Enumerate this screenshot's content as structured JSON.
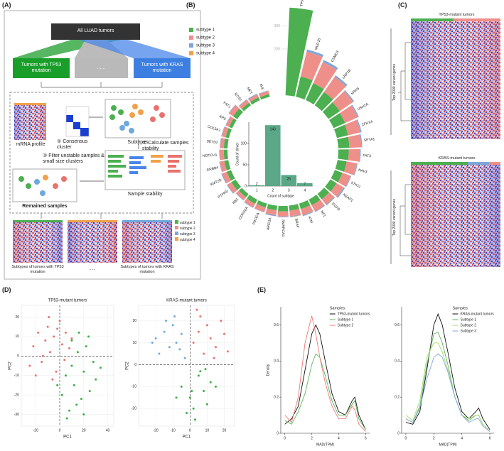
{
  "panel_labels": [
    "(A)",
    "(B)",
    "(C)",
    "(D)",
    "(E)"
  ],
  "panel_a": {
    "top": "All LUAD tumors",
    "groups": [
      "Tumors with TP53 mutation",
      "......",
      "Tumors with KRAS mutation"
    ],
    "mrna": "mRNA profile",
    "step1": "① Consensus cluster",
    "subtypes": "Subtypes",
    "step2": "② Calculate samples stability",
    "step3": "③ Filter unstable samples & small size clusters",
    "remained": "Remained samples",
    "stability": "Sample stability",
    "legend": [
      "subtype 1",
      "subtype 2",
      "subtype 3",
      "subtype 4"
    ],
    "outputs": [
      "Subtypes of tumors with TP53 mutation",
      "......",
      "Subtypes of tumors with KRAS mutation"
    ]
  },
  "panel_c": {
    "top_title": "TP53-mutant tumors",
    "bottom_title": "KRAS-mutant tumors",
    "row_label": "Top 2000 variant genes"
  },
  "chart_data": [
    {
      "type": "circular-bar",
      "categories": [
        "TP53",
        "MUC16",
        "CSMD3",
        "LRP1B",
        "KRAS",
        "USH2A",
        "ZFHX4",
        "SPTA1",
        "FAT3",
        "NAV3",
        "STK11",
        "KEAP1",
        "EGFR",
        "NF1",
        "ATM",
        "BRAF",
        "SMARCA4",
        "ARID1A",
        "PIK3CA",
        "CDKN2A",
        "RB1",
        "PTPRD",
        "KMT2D",
        "ERBB4",
        "NOTCH1",
        "SETD2",
        "COL5A1",
        "APC",
        "FAT1",
        "ROS1",
        "MET",
        "ALK"
      ],
      "series": [
        {
          "name": "subtype 1",
          "color": "#4caf50",
          "values": [
            380,
            90,
            80,
            70,
            60,
            55,
            50,
            48,
            45,
            40,
            35,
            32,
            30,
            28,
            25,
            22,
            24,
            20,
            18,
            20,
            18,
            22,
            20,
            18,
            16,
            16,
            15,
            15,
            22,
            14,
            14,
            12
          ]
        },
        {
          "name": "subtype 2",
          "color": "#ef8f8a",
          "values": [
            0,
            110,
            100,
            80,
            70,
            60,
            55,
            52,
            48,
            45,
            38,
            36,
            28,
            30,
            28,
            24,
            22,
            22,
            20,
            18,
            16,
            20,
            22,
            20,
            18,
            16,
            17,
            15,
            22,
            16,
            14,
            14
          ]
        },
        {
          "name": "subtype 3",
          "color": "#7fa6d8",
          "values": [
            0,
            10,
            10,
            8,
            5,
            5,
            5,
            4,
            4,
            3,
            3,
            6,
            4,
            3,
            4,
            3,
            3,
            4,
            2,
            2,
            2,
            3,
            3,
            2,
            2,
            2,
            2,
            2,
            2,
            2,
            3,
            2
          ]
        },
        {
          "name": "subtype 4",
          "color": "#f0a24b",
          "values": [
            0,
            0,
            0,
            0,
            0,
            0,
            0,
            0,
            0,
            0,
            0,
            0,
            2,
            0,
            0,
            2,
            0,
            0,
            0,
            0,
            0,
            0,
            0,
            0,
            0,
            0,
            0,
            0,
            0,
            0,
            0,
            0
          ]
        }
      ],
      "rlim": [
        0,
        400
      ],
      "rticks": [
        200,
        300
      ]
    },
    {
      "type": "bar",
      "categories": [
        "1",
        "2",
        "3",
        "4"
      ],
      "values": [
        2,
        143,
        26,
        7
      ],
      "color": "#5aa888",
      "xlabel": "Count of subtype",
      "ylabel": "Count of driver",
      "ylim": [
        0,
        150
      ],
      "yticks": [
        0,
        50,
        100
      ]
    },
    {
      "type": "scatter",
      "title": "TP53-mutant tumors",
      "xlabel": "PC1",
      "ylabel": "PC2",
      "xlim": [
        -32,
        45
      ],
      "ylim": [
        -36,
        26
      ],
      "xticks": [
        -20,
        0,
        20,
        40
      ],
      "yticks": [
        -30,
        -20,
        -10,
        0,
        10,
        20
      ],
      "grid": true,
      "series": [
        {
          "color": "#e8736c",
          "x": [
            -22,
            -18,
            -15,
            -12,
            -10,
            -8,
            -5,
            -3,
            0,
            2,
            5,
            8,
            -20,
            -14,
            -6,
            -2,
            4,
            10,
            -25,
            -9
          ],
          "y": [
            5,
            12,
            -3,
            8,
            15,
            2,
            10,
            -8,
            18,
            6,
            12,
            4,
            -10,
            0,
            -12,
            14,
            -2,
            9,
            -5,
            20
          ]
        },
        {
          "color": "#3cb043",
          "x": [
            2,
            5,
            8,
            10,
            12,
            15,
            18,
            20,
            22,
            25,
            28,
            30,
            6,
            14,
            24,
            34,
            16,
            -2,
            10,
            20
          ],
          "y": [
            -20,
            -10,
            -28,
            -5,
            -15,
            2,
            -22,
            -8,
            5,
            -18,
            -3,
            -12,
            -32,
            -25,
            10,
            -6,
            12,
            -15,
            8,
            -30
          ]
        }
      ]
    },
    {
      "type": "scatter",
      "title": "KRAS-mutant tumors",
      "xlabel": "PC1",
      "ylabel": "PC2",
      "xlim": [
        -30,
        26
      ],
      "ylim": [
        -28,
        27
      ],
      "xticks": [
        -20,
        -10,
        0,
        10,
        20
      ],
      "yticks": [
        -20,
        -10,
        0,
        10,
        20
      ],
      "grid": true,
      "series": [
        {
          "color": "#6fa8dc",
          "x": [
            -20,
            -15,
            -12,
            -10,
            -8,
            -5,
            -18,
            -14,
            -6,
            -3,
            -22,
            -9
          ],
          "y": [
            12,
            15,
            8,
            18,
            10,
            14,
            5,
            20,
            7,
            3,
            10,
            22
          ]
        },
        {
          "color": "#e8736c",
          "x": [
            2,
            5,
            8,
            10,
            12,
            15,
            18,
            6,
            14,
            20,
            4,
            22
          ],
          "y": [
            10,
            15,
            5,
            18,
            12,
            8,
            20,
            22,
            3,
            14,
            25,
            6
          ]
        },
        {
          "color": "#3cb043",
          "x": [
            -5,
            0,
            2,
            5,
            8,
            10,
            12,
            -2,
            6,
            15,
            3,
            9,
            -8,
            1
          ],
          "y": [
            -10,
            -15,
            -20,
            -5,
            -12,
            -18,
            -8,
            -22,
            -3,
            -10,
            -25,
            -2,
            -15,
            -12
          ]
        }
      ]
    },
    {
      "type": "line",
      "xlabel": "MAD(TPM)",
      "ylabel": "Density",
      "legend_title": "Samples",
      "xlim": [
        -0.3,
        6.3
      ],
      "ylim": [
        0,
        0.7
      ],
      "xticks": [
        0,
        2,
        4,
        6
      ],
      "yticks": [
        0,
        0.2,
        0.4,
        0.6
      ],
      "x": [
        0,
        0.5,
        1,
        1.5,
        2,
        2.3,
        2.6,
        3,
        3.5,
        4,
        4.5,
        5,
        5.2,
        5.5,
        6
      ],
      "series": [
        {
          "name": "TP53-mutant tumors",
          "color": "#111111",
          "values": [
            0.05,
            0.08,
            0.15,
            0.35,
            0.55,
            0.6,
            0.55,
            0.4,
            0.22,
            0.12,
            0.1,
            0.18,
            0.2,
            0.1,
            0.02
          ]
        },
        {
          "name": "Subtype 1",
          "color": "#5cb85c",
          "values": [
            0.07,
            0.05,
            0.12,
            0.22,
            0.38,
            0.44,
            0.42,
            0.32,
            0.18,
            0.1,
            0.1,
            0.16,
            0.18,
            0.08,
            0.02
          ]
        },
        {
          "name": "Subtype 2",
          "color": "#f07878",
          "values": [
            0.1,
            0.06,
            0.2,
            0.5,
            0.65,
            0.55,
            0.42,
            0.28,
            0.15,
            0.08,
            0.08,
            0.15,
            0.13,
            0.05,
            0.01
          ]
        }
      ]
    },
    {
      "type": "line",
      "xlabel": "MAD(TPM)",
      "legend_title": "Samples",
      "xlim": [
        -0.3,
        6.3
      ],
      "ylim": [
        0,
        0.7
      ],
      "xticks": [
        0,
        2,
        4,
        6
      ],
      "yticks": [
        0,
        0.2,
        0.4,
        0.6
      ],
      "x": [
        0,
        0.5,
        1,
        1.5,
        2,
        2.3,
        2.6,
        3,
        3.5,
        4,
        4.5,
        5,
        5.2,
        5.5,
        6
      ],
      "series": [
        {
          "name": "KRAS-mutant tumors",
          "color": "#111111",
          "values": [
            0.06,
            0.05,
            0.12,
            0.35,
            0.6,
            0.66,
            0.6,
            0.45,
            0.25,
            0.12,
            0.08,
            0.12,
            0.14,
            0.08,
            0.02
          ]
        },
        {
          "name": "Subtype 1",
          "color": "#5cb85c",
          "values": [
            0.08,
            0.06,
            0.15,
            0.38,
            0.55,
            0.56,
            0.5,
            0.38,
            0.2,
            0.1,
            0.07,
            0.1,
            0.1,
            0.05,
            0.01
          ]
        },
        {
          "name": "Subtype 2",
          "color": "#a6d96a",
          "values": [
            0.1,
            0.07,
            0.18,
            0.42,
            0.5,
            0.5,
            0.45,
            0.35,
            0.2,
            0.1,
            0.08,
            0.1,
            0.1,
            0.05,
            0.01
          ]
        },
        {
          "name": "Subtype 3",
          "color": "#7fa6d8",
          "values": [
            0.08,
            0.06,
            0.14,
            0.3,
            0.42,
            0.44,
            0.42,
            0.34,
            0.2,
            0.1,
            0.06,
            0.08,
            0.08,
            0.04,
            0.01
          ]
        }
      ]
    }
  ]
}
